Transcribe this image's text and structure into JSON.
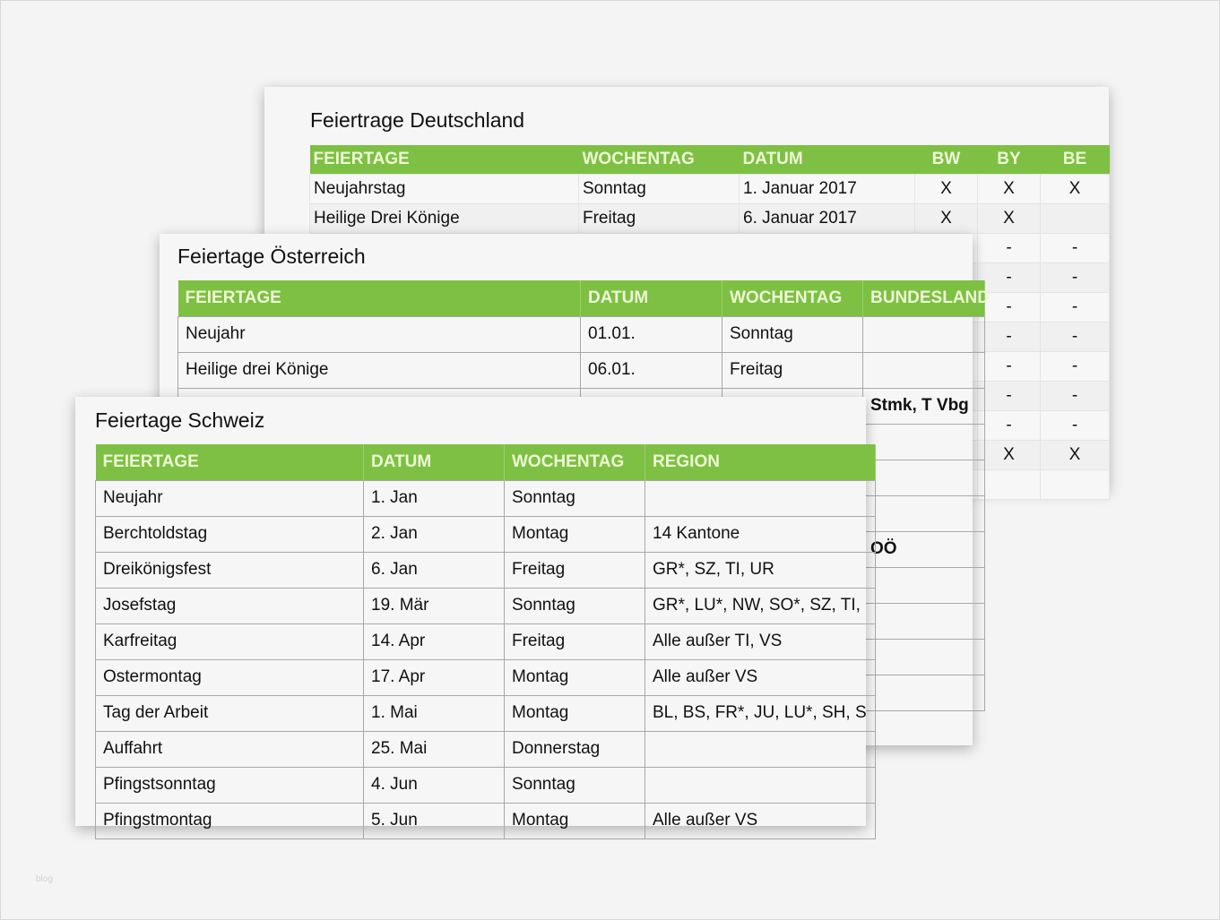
{
  "watermark": "blog",
  "colors": {
    "header_green": "#7dc043",
    "header_text": "#eef8d6",
    "background": "#f4f4f4"
  },
  "germany": {
    "title": "Feiertrage Deutschland",
    "headers": [
      "FEIERTAGE",
      "WOCHENTAG",
      "DATUM",
      "BW",
      "BY",
      "BE"
    ],
    "rows": [
      [
        "Neujahrstag",
        "Sonntag",
        "1. Januar 2017",
        "X",
        "X",
        "X"
      ],
      [
        "Heilige Drei Könige",
        "Freitag",
        "6. Januar 2017",
        "X",
        "X",
        ""
      ],
      [
        "",
        "",
        "",
        "",
        "-",
        "-"
      ],
      [
        "",
        "",
        "",
        "",
        "-",
        "-"
      ],
      [
        "",
        "",
        "",
        "",
        "-",
        "-"
      ],
      [
        "",
        "",
        "",
        "",
        "-",
        "-"
      ],
      [
        "",
        "",
        "",
        "",
        "-",
        "-"
      ],
      [
        "",
        "",
        "",
        "",
        "-",
        "-"
      ],
      [
        "",
        "",
        "",
        "",
        "-",
        "-"
      ],
      [
        "",
        "",
        "",
        "",
        "X",
        "X"
      ],
      [
        "",
        "",
        "",
        "",
        "",
        ""
      ]
    ]
  },
  "austria": {
    "title": "Feiertage Österreich",
    "headers": [
      "FEIERTAGE",
      "DATUM",
      "WOCHENTAG",
      "BUNDESLAND"
    ],
    "rows": [
      [
        "Neujahr",
        "01.01.",
        "Sonntag",
        ""
      ],
      [
        "Heilige drei Könige",
        "06.01.",
        "Freitag",
        ""
      ],
      [
        "",
        "",
        "",
        "Stmk, T Vbg"
      ],
      [
        "",
        "",
        "",
        ""
      ],
      [
        "",
        "",
        "",
        ""
      ],
      [
        "",
        "",
        "",
        ""
      ],
      [
        "",
        "",
        "",
        "OÖ"
      ],
      [
        "",
        "",
        "",
        ""
      ],
      [
        "",
        "",
        "",
        ""
      ],
      [
        "",
        "",
        "",
        ""
      ],
      [
        "",
        "",
        "",
        ""
      ]
    ]
  },
  "switzerland": {
    "title": "Feiertage Schweiz",
    "headers": [
      "FEIERTAGE",
      "DATUM",
      "WOCHENTAG",
      "REGION"
    ],
    "rows": [
      [
        "Neujahr",
        "1. Jan",
        "Sonntag",
        ""
      ],
      [
        "Berchtoldstag",
        "2. Jan",
        "Montag",
        "14 Kantone"
      ],
      [
        "Dreikönigsfest",
        "6. Jan",
        "Freitag",
        "GR*, SZ, TI, UR"
      ],
      [
        "Josefstag",
        "19. Mär",
        "Sonntag",
        "GR*, LU*, NW, SO*, SZ, TI,"
      ],
      [
        "Karfreitag",
        "14. Apr",
        "Freitag",
        "Alle außer TI, VS"
      ],
      [
        "Ostermontag",
        "17. Apr",
        "Montag",
        "Alle außer VS"
      ],
      [
        "Tag der Arbeit",
        "1. Mai",
        "Montag",
        "BL, BS, FR*, JU, LU*, SH, S"
      ],
      [
        "Auffahrt",
        "25. Mai",
        "Donnerstag",
        ""
      ],
      [
        "Pfingstsonntag",
        "4. Jun",
        "Sonntag",
        ""
      ],
      [
        "Pfingstmontag",
        "5. Jun",
        "Montag",
        "Alle außer VS"
      ]
    ]
  }
}
